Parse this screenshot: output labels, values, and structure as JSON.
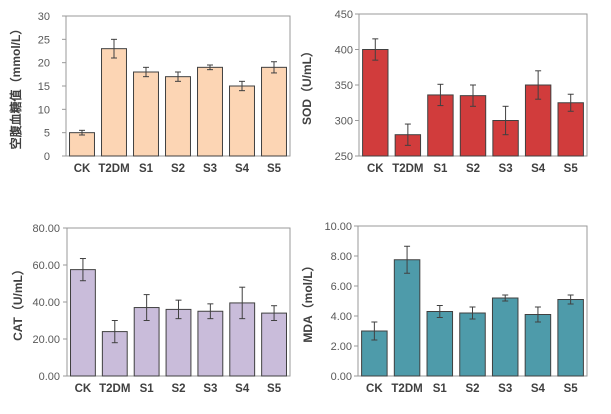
{
  "chart_data": [
    {
      "type": "bar",
      "categories": [
        "CK",
        "T2DM",
        "S1",
        "S2",
        "S3",
        "S4",
        "S5"
      ],
      "values": [
        5,
        23,
        18,
        17,
        19,
        15,
        19
      ],
      "errors": [
        0.5,
        2.0,
        1.0,
        1.0,
        0.5,
        1.0,
        1.2
      ],
      "ylabel": "空腹血糖值（mmol/L）",
      "ylim": [
        0,
        30
      ],
      "yticks": [
        "0",
        "5",
        "10",
        "15",
        "20",
        "25",
        "30"
      ],
      "color": "#FCD5B4",
      "grid": false
    },
    {
      "type": "bar",
      "categories": [
        "CK",
        "T2DM",
        "S1",
        "S2",
        "S3",
        "S4",
        "S5"
      ],
      "values": [
        400,
        280,
        336,
        335,
        300,
        350,
        325
      ],
      "errors": [
        15,
        15,
        15,
        15,
        20,
        20,
        12
      ],
      "ylabel": "SOD（U/mL）",
      "ylim": [
        250,
        450
      ],
      "yticks": [
        "250",
        "300",
        "350",
        "400",
        "450"
      ],
      "color": "#D13C3C",
      "grid": false
    },
    {
      "type": "bar",
      "categories": [
        "CK",
        "T2DM",
        "S1",
        "S2",
        "S3",
        "S4",
        "S5"
      ],
      "values": [
        57.5,
        24,
        37,
        36,
        35,
        39.5,
        34
      ],
      "errors": [
        6,
        6,
        7,
        5,
        4,
        8.5,
        4
      ],
      "ylabel": "CAT（U/mL）",
      "ylim": [
        0,
        80
      ],
      "yticks": [
        "0.00",
        "20.00",
        "40.00",
        "60.00",
        "80.00"
      ],
      "color": "#C9BCDA",
      "grid": false
    },
    {
      "type": "bar",
      "categories": [
        "CK",
        "T2DM",
        "S1",
        "S2",
        "S3",
        "S4",
        "S5"
      ],
      "values": [
        3.0,
        7.75,
        4.3,
        4.2,
        5.2,
        4.1,
        5.1
      ],
      "errors": [
        0.6,
        0.9,
        0.4,
        0.4,
        0.2,
        0.5,
        0.3
      ],
      "ylabel": "MDA（mol/L）",
      "ylim": [
        0,
        10
      ],
      "yticks": [
        "0.00",
        "2.00",
        "4.00",
        "6.00",
        "8.00",
        "10.00"
      ],
      "color": "#4E9BAA",
      "grid": false
    }
  ]
}
